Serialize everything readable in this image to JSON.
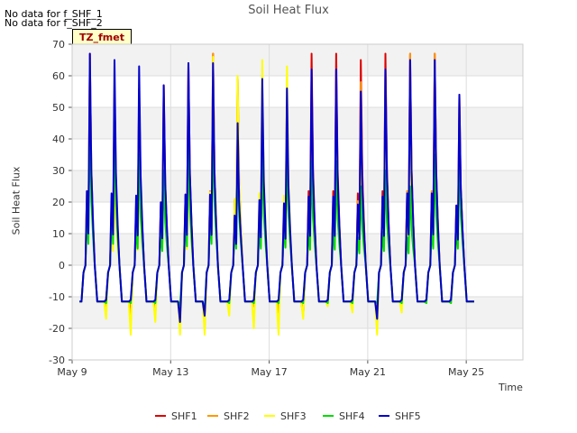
{
  "notes": [
    "No data for f_SHF_1",
    "No data for f_SHF_2"
  ],
  "badge": "TZ_fmet",
  "chart_data": {
    "type": "line",
    "title": "Soil Heat Flux",
    "xlabel": "Time",
    "ylabel": "Soil Heat Flux",
    "ylim": [
      -30,
      70
    ],
    "yticks": [
      -30,
      -20,
      -10,
      0,
      10,
      20,
      30,
      40,
      50,
      60,
      70
    ],
    "xlim_days": [
      9,
      27.3
    ],
    "xticks": [
      {
        "day": 9,
        "label": "May 9"
      },
      {
        "day": 13,
        "label": "May 13"
      },
      {
        "day": 17,
        "label": "May 17"
      },
      {
        "day": 21,
        "label": "May 21"
      },
      {
        "day": 25,
        "label": "May 25"
      }
    ],
    "grid": true,
    "legend": "bottom",
    "series": [
      {
        "name": "SHF1",
        "color": "#dd0000",
        "night": -11.5,
        "peaks": [
          67,
          56,
          56,
          57,
          64,
          67,
          59,
          56,
          55,
          67,
          67,
          65,
          67,
          67,
          67,
          54
        ],
        "troughs": [
          -11,
          -17,
          -14,
          -18,
          -19,
          -12,
          -12,
          -14,
          -16,
          -11,
          -11,
          -16,
          -12,
          -11,
          -11
        ]
      },
      {
        "name": "SHF2",
        "color": "#ff9900",
        "night": -11.5,
        "peaks": [
          63,
          40,
          37,
          35,
          40,
          67,
          40,
          40,
          38,
          40,
          55,
          58,
          60,
          67,
          67,
          43
        ],
        "troughs": [
          -13,
          -18,
          -16,
          -20,
          -20,
          -12,
          -13,
          -15,
          -16,
          -12,
          -12,
          -20,
          -13,
          -12,
          -12
        ]
      },
      {
        "name": "SHF3",
        "color": "#ffff00",
        "night": -11.5,
        "peaks": [
          65,
          30,
          32,
          33,
          34,
          66,
          60,
          65,
          63,
          32,
          35,
          38,
          40,
          40,
          42,
          40
        ],
        "troughs": [
          -17,
          -22,
          -18,
          -22,
          -22,
          -16,
          -20,
          -22,
          -17,
          -13,
          -15,
          -22,
          -15,
          -12,
          -12
        ]
      },
      {
        "name": "SHF4",
        "color": "#00dd00",
        "night": -11.5,
        "peaks": [
          45,
          45,
          35,
          30,
          40,
          45,
          35,
          35,
          37,
          33,
          33,
          25,
          30,
          25,
          35,
          35
        ],
        "troughs": [
          -12,
          -12,
          -12,
          -13,
          -14,
          -12,
          -12,
          -12,
          -12,
          -12,
          -12,
          -12,
          -12,
          -12,
          -12
        ]
      },
      {
        "name": "SHF5",
        "color": "#0000cc",
        "night": -11.5,
        "peaks": [
          67,
          65,
          63,
          57,
          64,
          64,
          45,
          59,
          56,
          62,
          62,
          55,
          62,
          65,
          65,
          54
        ],
        "troughs": [
          -11,
          -11,
          -11,
          -18,
          -16,
          -11,
          -11,
          -11,
          -11,
          -11,
          -11,
          -17,
          -11,
          -11,
          -11
        ]
      }
    ]
  }
}
